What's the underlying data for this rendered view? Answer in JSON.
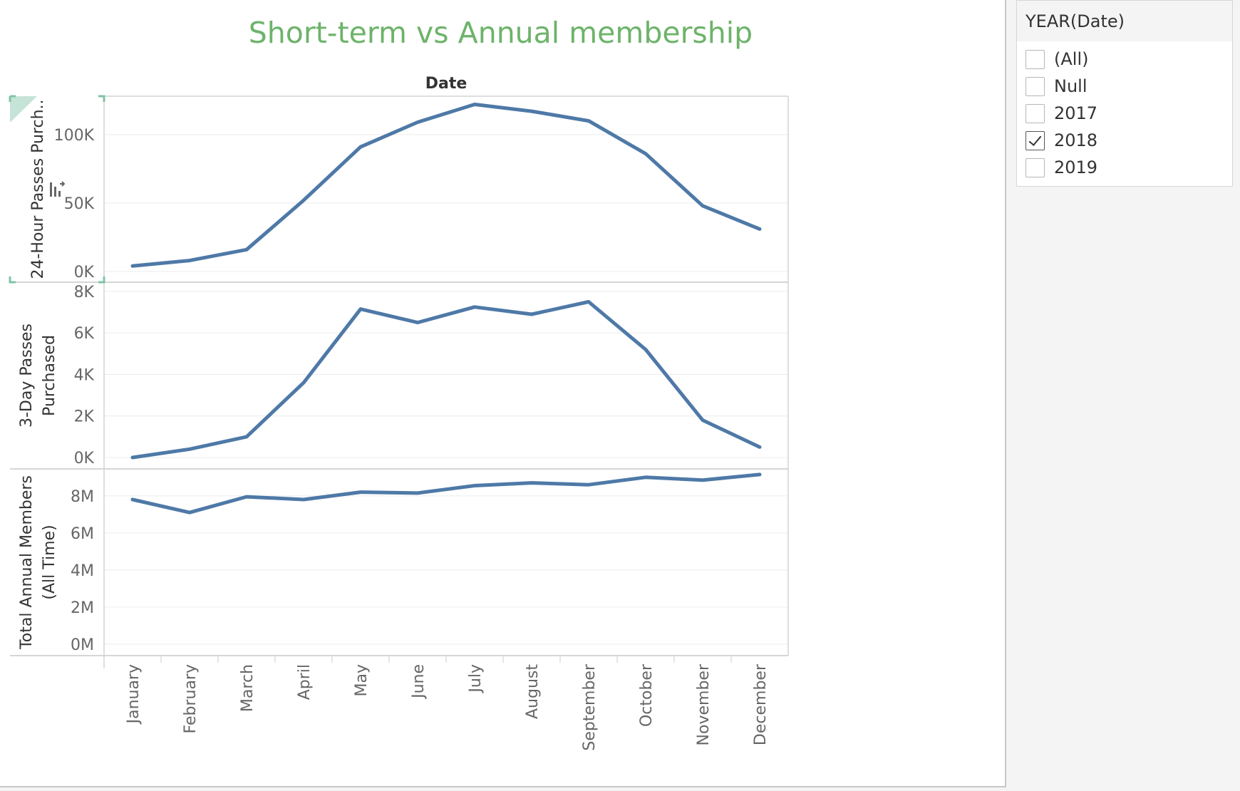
{
  "title": "Short-term vs Annual membership",
  "colors": {
    "title": "#6db36a",
    "line": "#4e79a7",
    "grid": "#ececec",
    "axis_text": "#666666",
    "label_text": "#333333",
    "selection_corner": "#7fc4a6"
  },
  "filter": {
    "title": "YEAR(Date)",
    "options": [
      {
        "label": "(All)",
        "checked": false
      },
      {
        "label": "Null",
        "checked": false
      },
      {
        "label": "2017",
        "checked": false
      },
      {
        "label": "2018",
        "checked": true
      },
      {
        "label": "2019",
        "checked": false
      }
    ]
  },
  "chart_data": {
    "type": "line",
    "column_header": "Date",
    "categories": [
      "January",
      "February",
      "March",
      "April",
      "May",
      "June",
      "July",
      "August",
      "September",
      "October",
      "November",
      "December"
    ],
    "panels": [
      {
        "ylabel": [
          "24-Hour Passes Purch.."
        ],
        "ylim": [
          0,
          128000
        ],
        "ticks": [
          {
            "v": 0,
            "label": "0K"
          },
          {
            "v": 50000,
            "label": "50K"
          },
          {
            "v": 100000,
            "label": "100K"
          }
        ],
        "values": [
          4000,
          8000,
          16000,
          52000,
          91000,
          109000,
          122000,
          117000,
          110000,
          86000,
          48000,
          31000
        ]
      },
      {
        "ylabel": [
          "3-Day Passes",
          "Purchased"
        ],
        "ylim": [
          0,
          8100
        ],
        "ticks": [
          {
            "v": 0,
            "label": "0K"
          },
          {
            "v": 2000,
            "label": "2K"
          },
          {
            "v": 4000,
            "label": "4K"
          },
          {
            "v": 6000,
            "label": "6K"
          },
          {
            "v": 8000,
            "label": "8K"
          }
        ],
        "values": [
          0,
          400,
          1000,
          3600,
          7150,
          6500,
          7250,
          6900,
          7500,
          5200,
          1800,
          500
        ]
      },
      {
        "ylabel": [
          "Total Annual Members",
          "(All Time)"
        ],
        "ylim": [
          0,
          9300000
        ],
        "ticks": [
          {
            "v": 0,
            "label": "0M"
          },
          {
            "v": 2000000,
            "label": "2M"
          },
          {
            "v": 4000000,
            "label": "4M"
          },
          {
            "v": 6000000,
            "label": "6M"
          },
          {
            "v": 8000000,
            "label": "8M"
          }
        ],
        "values": [
          7800000,
          7100000,
          7950000,
          7800000,
          8200000,
          8150000,
          8550000,
          8700000,
          8600000,
          9000000,
          8850000,
          9150000
        ]
      }
    ],
    "grid": true,
    "legend": "none"
  }
}
